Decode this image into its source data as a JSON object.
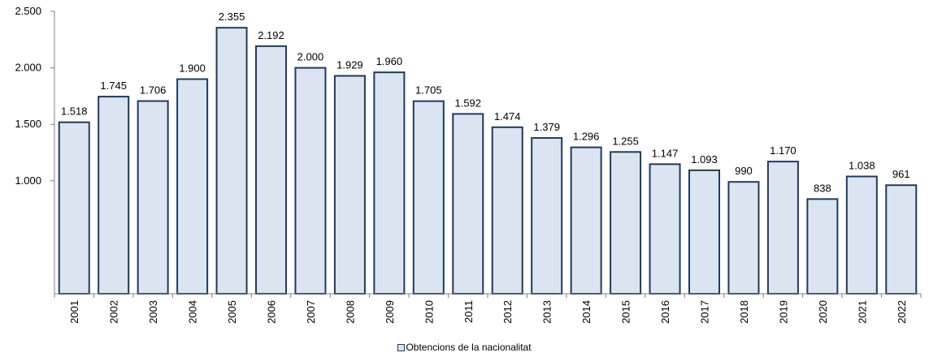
{
  "chart_data": {
    "type": "bar",
    "title": "",
    "xlabel": "",
    "ylabel": "",
    "categories": [
      "2001",
      "2002",
      "2003",
      "2004",
      "2005",
      "2006",
      "2007",
      "2008",
      "2009",
      "2010",
      "2011",
      "2012",
      "2013",
      "2014",
      "2015",
      "2016",
      "2017",
      "2018",
      "2019",
      "2020",
      "2021",
      "2022"
    ],
    "series": [
      {
        "name": "Obtencions de la nacionalitat",
        "values": [
          1518,
          1745,
          1706,
          1900,
          2355,
          2192,
          2000,
          1929,
          1960,
          1705,
          1592,
          1474,
          1379,
          1296,
          1255,
          1147,
          1093,
          990,
          1170,
          838,
          1038,
          961
        ],
        "labels": [
          "1.518",
          "1.745",
          "1.706",
          "1.900",
          "2.355",
          "2.192",
          "2.000",
          "1.929",
          "1.960",
          "1.705",
          "1.592",
          "1.474",
          "1.379",
          "1.296",
          "1.255",
          "1.147",
          "1.093",
          "990",
          "1.170",
          "838",
          "1.038",
          "961"
        ]
      }
    ],
    "yticks": [
      1000,
      1500,
      2000,
      2500
    ],
    "ytick_labels": [
      "1.000",
      "1.500",
      "2.000",
      "2.500"
    ],
    "ylim": [
      0,
      2500
    ],
    "grid": false,
    "legend_position": "bottom",
    "colors": {
      "bar_fill": "#dbe5f1",
      "bar_stroke": "#1f3a5f",
      "axis": "#808080"
    }
  }
}
